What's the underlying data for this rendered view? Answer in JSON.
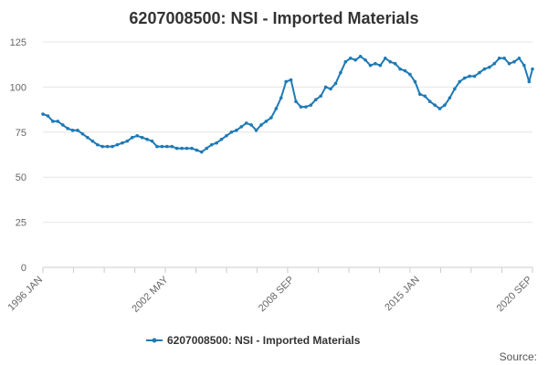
{
  "chart_data": {
    "type": "line",
    "title": "6207008500: NSI - Imported Materials",
    "xlabel": "",
    "ylabel": "",
    "ylim": [
      0,
      125
    ],
    "yticks": [
      0,
      25,
      50,
      75,
      100,
      125
    ],
    "xlim": [
      1996.0,
      2020.67
    ],
    "x_tick_labels": [
      {
        "label": "1996 JAN",
        "x": 1996.0
      },
      {
        "label": "2002 MAY",
        "x": 2002.33
      },
      {
        "label": "2008 SEP",
        "x": 2008.67
      },
      {
        "label": "2015 JAN",
        "x": 2015.0
      },
      {
        "label": "2020 SEP",
        "x": 2020.67
      }
    ],
    "minor_ticks": [
      1996.0,
      1997.54,
      1999.09,
      2000.63,
      2002.17,
      2003.71,
      2005.25,
      2006.79,
      2008.33,
      2009.88,
      2011.42,
      2012.96,
      2014.5,
      2016.04,
      2017.58,
      2019.13,
      2020.67
    ],
    "color": "#1f7ab4",
    "legend_position": "bottom",
    "series": [
      {
        "name": "6207008500: NSI - Imported Materials",
        "x": [
          1996.0,
          1996.25,
          1996.5,
          1996.75,
          1997.0,
          1997.25,
          1997.5,
          1997.75,
          1998.0,
          1998.25,
          1998.5,
          1998.75,
          1999.0,
          1999.25,
          1999.5,
          1999.75,
          2000.0,
          2000.25,
          2000.5,
          2000.75,
          2001.0,
          2001.25,
          2001.5,
          2001.75,
          2002.0,
          2002.25,
          2002.5,
          2002.75,
          2003.0,
          2003.25,
          2003.5,
          2003.75,
          2004.0,
          2004.25,
          2004.5,
          2004.75,
          2005.0,
          2005.25,
          2005.5,
          2005.75,
          2006.0,
          2006.25,
          2006.5,
          2006.75,
          2007.0,
          2007.25,
          2007.5,
          2007.75,
          2008.0,
          2008.25,
          2008.5,
          2008.75,
          2009.0,
          2009.25,
          2009.5,
          2009.75,
          2010.0,
          2010.25,
          2010.5,
          2010.75,
          2011.0,
          2011.25,
          2011.5,
          2011.75,
          2012.0,
          2012.25,
          2012.5,
          2012.75,
          2013.0,
          2013.25,
          2013.5,
          2013.75,
          2014.0,
          2014.25,
          2014.5,
          2014.75,
          2015.0,
          2015.25,
          2015.5,
          2015.75,
          2016.0,
          2016.25,
          2016.5,
          2016.75,
          2017.0,
          2017.25,
          2017.5,
          2017.75,
          2018.0,
          2018.25,
          2018.5,
          2018.75,
          2019.0,
          2019.25,
          2019.5,
          2019.75,
          2020.0,
          2020.25,
          2020.5,
          2020.67
        ],
        "values": [
          85,
          84,
          81,
          81,
          79,
          77,
          76,
          76,
          74,
          72,
          70,
          68,
          67,
          67,
          67,
          68,
          69,
          70,
          72,
          73,
          72,
          71,
          70,
          67,
          67,
          67,
          67,
          66,
          66,
          66,
          66,
          65,
          64,
          66,
          68,
          69,
          71,
          73,
          75,
          76,
          78,
          80,
          79,
          76,
          79,
          81,
          83,
          88,
          94,
          103,
          104,
          92,
          89,
          89,
          90,
          93,
          95,
          100,
          99,
          102,
          108,
          114,
          116,
          115,
          117,
          115,
          112,
          113,
          112,
          116,
          114,
          113,
          110,
          109,
          107,
          103,
          96,
          95,
          92,
          90,
          88,
          90,
          94,
          99,
          103,
          105,
          106,
          106,
          108,
          110,
          111,
          113,
          116,
          116,
          113,
          114,
          116,
          112,
          103,
          110
        ]
      }
    ],
    "source_label": "Source:"
  }
}
